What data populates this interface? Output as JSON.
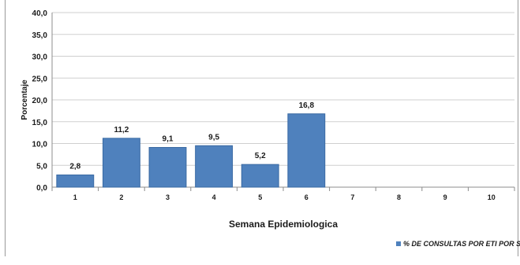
{
  "chart_data": {
    "type": "bar",
    "categories": [
      "1",
      "2",
      "3",
      "4",
      "5",
      "6",
      "7",
      "8",
      "9",
      "10"
    ],
    "series": [
      {
        "name": "% DE CONSULTAS POR ETI POR SE",
        "values": [
          2.8,
          11.2,
          9.1,
          9.5,
          5.2,
          16.8,
          null,
          null,
          null,
          null
        ]
      }
    ],
    "data_labels": [
      "2,8",
      "11,2",
      "9,1",
      "9,5",
      "5,2",
      "16,8"
    ],
    "xlabel": "Semana Epidemiologica",
    "ylabel": "Porcentaje",
    "ylim": [
      0,
      40
    ],
    "ytick_labels": [
      "0,0",
      "5,0",
      "10,0",
      "15,0",
      "20,0",
      "25,0",
      "30,0",
      "35,0",
      "40,0"
    ],
    "grid": true,
    "legend_position": "bottom-right",
    "colors": {
      "bar": "#4f81bd",
      "bar_edge": "#3a6aa3",
      "grid": "#cfcfcf",
      "axis": "#8c8c8c",
      "text": "#1a1a1a",
      "frame": "#9a9a9a"
    }
  }
}
